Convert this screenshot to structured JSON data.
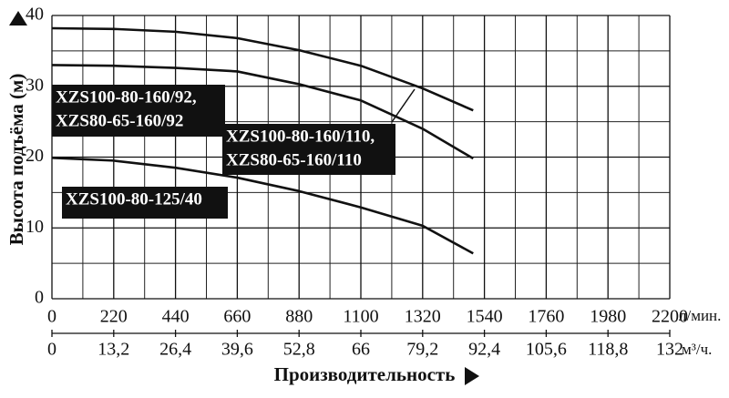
{
  "chart_data": {
    "type": "line",
    "y_label": "Высота подъёма (м)",
    "x_label": "Производительность",
    "x_unit": "л/мин.",
    "x2_unit": "м³/ч.",
    "x": [
      0,
      220,
      440,
      660,
      880,
      1100,
      1320,
      1500
    ],
    "series": [
      {
        "name": [
          "XZS100-80-160/110,",
          "XZS80-65-160/110"
        ],
        "color": "#111111",
        "values": [
          38.2,
          38.1,
          37.7,
          36.8,
          35.1,
          32.9,
          29.7,
          26.6
        ]
      },
      {
        "name": [
          "XZS100-80-160/92,",
          "XZS80-65-160/92"
        ],
        "color": "#111111",
        "values": [
          33.0,
          32.9,
          32.6,
          32.1,
          30.3,
          28.0,
          24.0,
          19.8
        ]
      },
      {
        "name": [
          "XZS100-80-125/40"
        ],
        "color": "#111111",
        "values": [
          19.9,
          19.5,
          18.5,
          17.1,
          15.2,
          12.9,
          10.3,
          6.4
        ]
      }
    ],
    "xlim": [
      0,
      2200
    ],
    "xticks": [
      0,
      220,
      440,
      660,
      880,
      1100,
      1320,
      1540,
      1760,
      1980,
      2200
    ],
    "x2lim": [
      0,
      132
    ],
    "x2ticks": [
      0,
      {
        "value": 13.2,
        "label": "13,2"
      },
      {
        "value": 26.4,
        "label": "26,4"
      },
      {
        "value": 39.6,
        "label": "39,6"
      },
      {
        "value": 52.8,
        "label": "52,8"
      },
      66,
      {
        "value": 79.2,
        "label": "79,2"
      },
      {
        "value": 92.4,
        "label": "92,4"
      },
      {
        "value": 105.6,
        "label": "105,6"
      },
      {
        "value": 118.8,
        "label": "118,8"
      },
      132
    ],
    "ylim": [
      0,
      40
    ],
    "yticks": [
      0,
      10,
      20,
      30,
      40
    ],
    "grid": true
  }
}
